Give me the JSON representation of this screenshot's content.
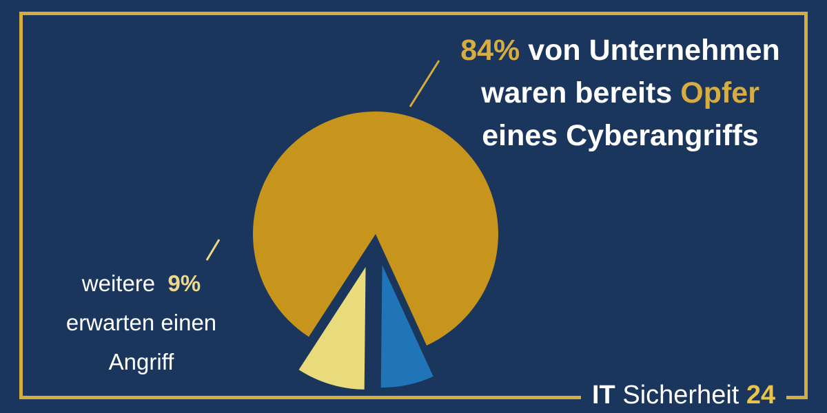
{
  "chart_data": {
    "type": "pie",
    "slices": [
      {
        "label": "von Unternehmen waren bereits Opfer eines Cyberangriffs",
        "value": 84,
        "color": "#c8951c"
      },
      {
        "label": "",
        "value": 7,
        "color": "#1f75b8"
      },
      {
        "label": "weitere erwarten einen Angriff",
        "value": 9,
        "color": "#e9da7c"
      }
    ]
  },
  "callouts": {
    "main": {
      "pct": "84%",
      "line1_rest": "von Unternehmen",
      "line2_a": "waren bereits",
      "line2_b": "Opfer",
      "line3": "eines Cyberangriffs"
    },
    "side": {
      "line1_a": "weitere",
      "line1_b": "9%",
      "line2": "erwarten einen",
      "line3": "Angriff"
    }
  },
  "brand": {
    "it": "IT",
    "name": "Sicherheit",
    "num": "24"
  },
  "colors": {
    "background": "#1b365d",
    "frame": "#d4ac40",
    "accent": "#d7ac40",
    "accent_light": "#ecd989"
  }
}
